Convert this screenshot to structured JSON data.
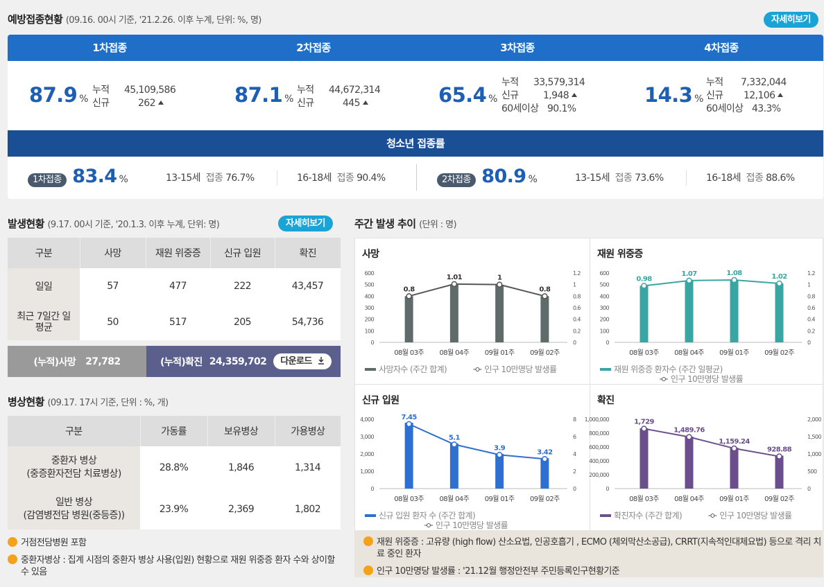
{
  "vaccination": {
    "title": "예방접종현황",
    "subtitle": "(09.16. 00시 기준, '21.2.26. 이후 누계, 단위: %, 명)",
    "detail_button": "자세히보기",
    "doses": [
      {
        "header": "1차접종",
        "rate": "87.9",
        "unit": "%",
        "lines": [
          {
            "label": "누적",
            "value": "45,109,586"
          },
          {
            "label": "신규",
            "value": "262",
            "up": true
          }
        ]
      },
      {
        "header": "2차접종",
        "rate": "87.1",
        "unit": "%",
        "lines": [
          {
            "label": "누적",
            "value": "44,672,314"
          },
          {
            "label": "신규",
            "value": "445",
            "up": true
          }
        ]
      },
      {
        "header": "3차접종",
        "rate": "65.4",
        "unit": "%",
        "lines": [
          {
            "label": "누적",
            "value": "33,579,314"
          },
          {
            "label": "신규",
            "value": "1,948",
            "up": true
          },
          {
            "label": "60세이상",
            "value": "90.1%"
          }
        ]
      },
      {
        "header": "4차접종",
        "rate": "14.3",
        "unit": "%",
        "lines": [
          {
            "label": "누적",
            "value": "7,332,044"
          },
          {
            "label": "신규",
            "value": "12,106",
            "up": true
          },
          {
            "label": "60세이상",
            "value": "43.3%"
          }
        ]
      }
    ],
    "teen": {
      "title": "청소년 접종률",
      "groups": [
        {
          "badge": "1차접종",
          "rate": "83.4",
          "unit": "%",
          "a_label": "13-15세",
          "a_sub": "접종",
          "a_val": "76.7%",
          "b_label": "16-18세",
          "b_sub": "접종",
          "b_val": "90.4%"
        },
        {
          "badge": "2차접종",
          "rate": "80.9",
          "unit": "%",
          "a_label": "13-15세",
          "a_sub": "접종",
          "a_val": "73.6%",
          "b_label": "16-18세",
          "b_sub": "접종",
          "b_val": "88.6%"
        }
      ]
    }
  },
  "occurrence": {
    "title": "발생현황",
    "subtitle": "(9.17. 00시 기준, '20.1.3. 이후 누계, 단위: 명)",
    "detail_button": "자세히보기",
    "headers": [
      "구분",
      "사망",
      "재원 위중증",
      "신규 입원",
      "확진"
    ],
    "rows": [
      {
        "label": "일일",
        "cells": [
          "57",
          "477",
          "222",
          "43,457"
        ]
      },
      {
        "label": "최근 7일간 일평균",
        "cells": [
          "50",
          "517",
          "205",
          "54,736"
        ]
      }
    ],
    "summary": {
      "death_label": "(누적)사망",
      "death_value": "27,782",
      "conf_label": "(누적)확진",
      "conf_value": "24,359,702",
      "download": "다운로드"
    }
  },
  "beds": {
    "title": "병상현황",
    "subtitle": "(09.17. 17시 기준, 단위 : %, 개)",
    "headers": [
      "구분",
      "가동률",
      "보유병상",
      "가용병상"
    ],
    "rows": [
      {
        "label1": "중환자 병상",
        "label2": "(중증환자전담 치료병상)",
        "cells": [
          "28.8%",
          "1,846",
          "1,314"
        ]
      },
      {
        "label1": "일반 병상",
        "label2": "(감염병전담 병원(중등증))",
        "cells": [
          "23.9%",
          "2,369",
          "1,802"
        ]
      }
    ],
    "notes": [
      "거점전담병원 포함",
      "중환자병상 : 집계 시점의 중환자 병상 사용(입원) 현황으로 재원 위중증 환자 수와 상이할 수 있음"
    ]
  },
  "weekly": {
    "title": "주간 발생 추이",
    "subtitle": "(단위 : 명)",
    "notes": [
      "재원 위중증 : 고유량 (high flow) 산소요법, 인공호흡기 , ECMO (체외막산소공급), CRRT(지속적인대체요법) 등으로 격리 치료 중인 환자",
      "인구 10만명당 발생률 : '21.12월 행정안전부 주민등록인구현황기준"
    ]
  },
  "chart_data": [
    {
      "type": "bar",
      "title": "사망",
      "color": "#5f6b6b",
      "categories": [
        "08월 03주",
        "08월 04주",
        "09월 01주",
        "09월 02주"
      ],
      "series": [
        {
          "name": "사망자수 (주간 합계)",
          "values": [
            400,
            500,
            495,
            400
          ]
        },
        {
          "name": "인구 10만명당 발생률",
          "type": "line",
          "values": [
            0.8,
            1.01,
            1,
            0.8
          ],
          "labels": [
            "0.8",
            "1.01",
            "1",
            "0.8"
          ]
        }
      ],
      "ylim": [
        0,
        600
      ],
      "yticks": [
        "0",
        "100",
        "200",
        "300",
        "400",
        "500",
        "600"
      ],
      "y2lim": [
        0,
        1.2
      ],
      "y2ticks": [
        "0",
        "0.2",
        "0.4",
        "0.6",
        "0.8",
        "1",
        "1.2"
      ]
    },
    {
      "type": "bar",
      "title": "재원 위중증",
      "color": "#3aa6a3",
      "categories": [
        "08월 03주",
        "08월 04주",
        "09월 01주",
        "09월 02주"
      ],
      "series": [
        {
          "name": "재원 위중증 환자수 (주간 일평균)",
          "values": [
            490,
            535,
            540,
            510
          ]
        },
        {
          "name": "인구 10만명당 발생률",
          "type": "line",
          "values": [
            0.98,
            1.07,
            1.08,
            1.02
          ],
          "labels": [
            "0.98",
            "1.07",
            "1.08",
            "1.02"
          ]
        }
      ],
      "ylim": [
        0,
        600
      ],
      "yticks": [
        "0",
        "100",
        "200",
        "300",
        "400",
        "500",
        "600"
      ],
      "y2lim": [
        0,
        1.2
      ],
      "y2ticks": [
        "0",
        "0.2",
        "0.4",
        "0.6",
        "0.8",
        "1",
        "1.2"
      ]
    },
    {
      "type": "bar",
      "title": "신규 입원",
      "color": "#2f6fcf",
      "categories": [
        "08월 03주",
        "08월 04주",
        "09월 01주",
        "09월 02주"
      ],
      "series": [
        {
          "name": "신규 입원 환자 수 (주간 합계)",
          "values": [
            3800,
            2600,
            2000,
            1750
          ]
        },
        {
          "name": "인구 10만명당 발생률",
          "type": "line",
          "values": [
            7.45,
            5.1,
            3.9,
            3.42
          ],
          "labels": [
            "7.45",
            "5.1",
            "3.9",
            "3.42"
          ]
        }
      ],
      "ylim": [
        0,
        4000
      ],
      "yticks": [
        "0",
        "1,000",
        "2,000",
        "3,000",
        "4,000"
      ],
      "y2lim": [
        0,
        8
      ],
      "y2ticks": [
        "0",
        "2",
        "4",
        "6",
        "8"
      ]
    },
    {
      "type": "bar",
      "title": "확진",
      "color": "#6a4f8c",
      "categories": [
        "08월 03주",
        "08월 04주",
        "09월 01주",
        "09월 02주"
      ],
      "series": [
        {
          "name": "확진자수 (주간 합계)",
          "values": [
            870000,
            750000,
            590000,
            475000
          ]
        },
        {
          "name": "인구 10만명당 발생률",
          "type": "line",
          "values": [
            1729,
            1489.76,
            1159.24,
            928.88
          ],
          "labels": [
            "1,729",
            "1,489.76",
            "1,159.24",
            "928.88"
          ]
        }
      ],
      "ylim": [
        0,
        1000000
      ],
      "yticks": [
        "0",
        "200,000",
        "400,000",
        "600,000",
        "800,000",
        "1,000,000"
      ],
      "y2lim": [
        0,
        2000
      ],
      "y2ticks": [
        "0",
        "500",
        "1,000",
        "1,500",
        "2,000"
      ]
    }
  ]
}
